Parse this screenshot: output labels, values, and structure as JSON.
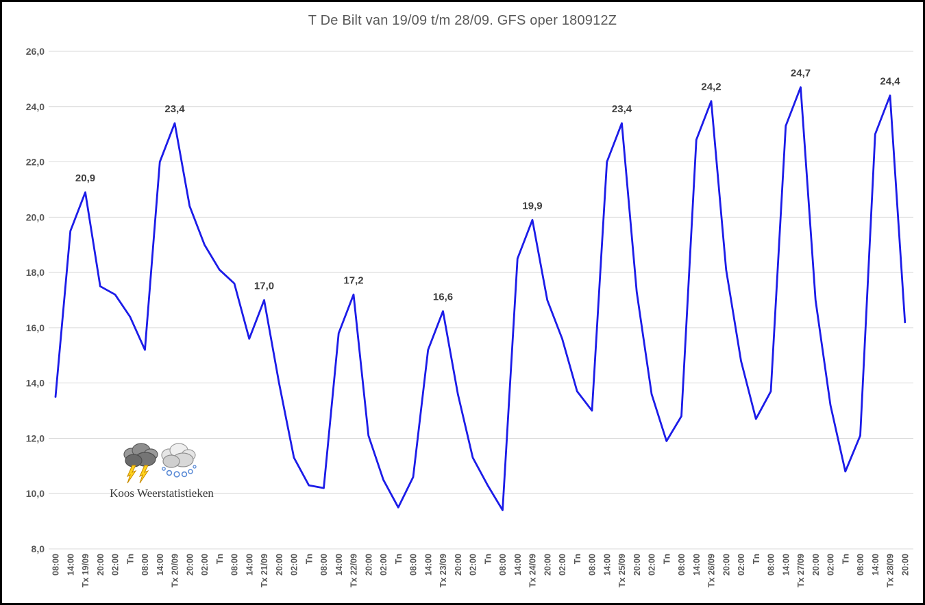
{
  "window": {
    "background_color": "#FFFFFF",
    "border_color": "#000000"
  },
  "chart_data": {
    "type": "line",
    "title": "T De Bilt van 19/09 t/m 28/09. GFS oper 180912Z",
    "title_color": "#595959",
    "line_color": "#1C1CE8",
    "grid_color": "#D9D9D9",
    "axis_label_color": "#595959",
    "data_label_color": "#404040",
    "grid": true,
    "legend_position": "none",
    "ylim": [
      8.0,
      26.0
    ],
    "ytick_values": [
      26,
      24,
      22,
      20,
      18,
      16,
      14,
      12,
      10,
      8
    ],
    "ytick_labels": [
      "26,0",
      "24,0",
      "22,0",
      "20,0",
      "18,0",
      "16,0",
      "14,0",
      "12,0",
      "10,0",
      "8,0"
    ],
    "categories": [
      "08:00",
      "14:00",
      "Tx 19/09",
      "20:00",
      "02:00",
      "Tn",
      "08:00",
      "14:00",
      "Tx 20/09",
      "20:00",
      "02:00",
      "Tn",
      "08:00",
      "14:00",
      "Tx 21/09",
      "20:00",
      "02:00",
      "Tn",
      "08:00",
      "14:00",
      "Tx 22/09",
      "20:00",
      "02:00",
      "Tn",
      "08:00",
      "14:00",
      "Tx 23/09",
      "20:00",
      "02:00",
      "Tn",
      "08:00",
      "14:00",
      "Tx 24/09",
      "20:00",
      "02:00",
      "Tn",
      "08:00",
      "14:00",
      "Tx 25/09",
      "20:00",
      "02:00",
      "Tn",
      "08:00",
      "14:00",
      "Tx 26/09",
      "20:00",
      "02:00",
      "Tn",
      "08:00",
      "14:00",
      "Tx 27/09",
      "20:00",
      "02:00",
      "Tn",
      "08:00",
      "14:00",
      "Tx 28/09",
      "20:00"
    ],
    "values": [
      13.5,
      19.5,
      20.9,
      17.5,
      17.2,
      16.4,
      15.2,
      22.0,
      23.4,
      20.4,
      19.0,
      18.1,
      17.6,
      15.6,
      17.0,
      14.0,
      11.3,
      10.3,
      10.2,
      15.8,
      17.2,
      12.1,
      10.5,
      9.5,
      10.6,
      15.2,
      16.6,
      13.6,
      11.3,
      10.3,
      9.4,
      18.5,
      19.9,
      17.0,
      15.6,
      13.7,
      13.0,
      22.0,
      23.4,
      17.3,
      13.6,
      11.9,
      12.8,
      22.8,
      24.2,
      18.1,
      14.8,
      12.7,
      13.7,
      23.3,
      24.7,
      17.0,
      13.2,
      10.8,
      12.1,
      23.0,
      24.4,
      16.2
    ],
    "data_labels": [
      {
        "index": 2,
        "text": "20,9"
      },
      {
        "index": 8,
        "text": "23,4"
      },
      {
        "index": 14,
        "text": "17,0"
      },
      {
        "index": 20,
        "text": "17,2"
      },
      {
        "index": 26,
        "text": "16,6"
      },
      {
        "index": 32,
        "text": "19,9"
      },
      {
        "index": 38,
        "text": "23,4"
      },
      {
        "index": 44,
        "text": "24,2"
      },
      {
        "index": 50,
        "text": "24,7"
      },
      {
        "index": 56,
        "text": "24,4"
      }
    ]
  },
  "watermark": {
    "text": "Koos Weerstatistieken",
    "icons": [
      "storm-cloud-icon",
      "hail-cloud-icon"
    ]
  }
}
